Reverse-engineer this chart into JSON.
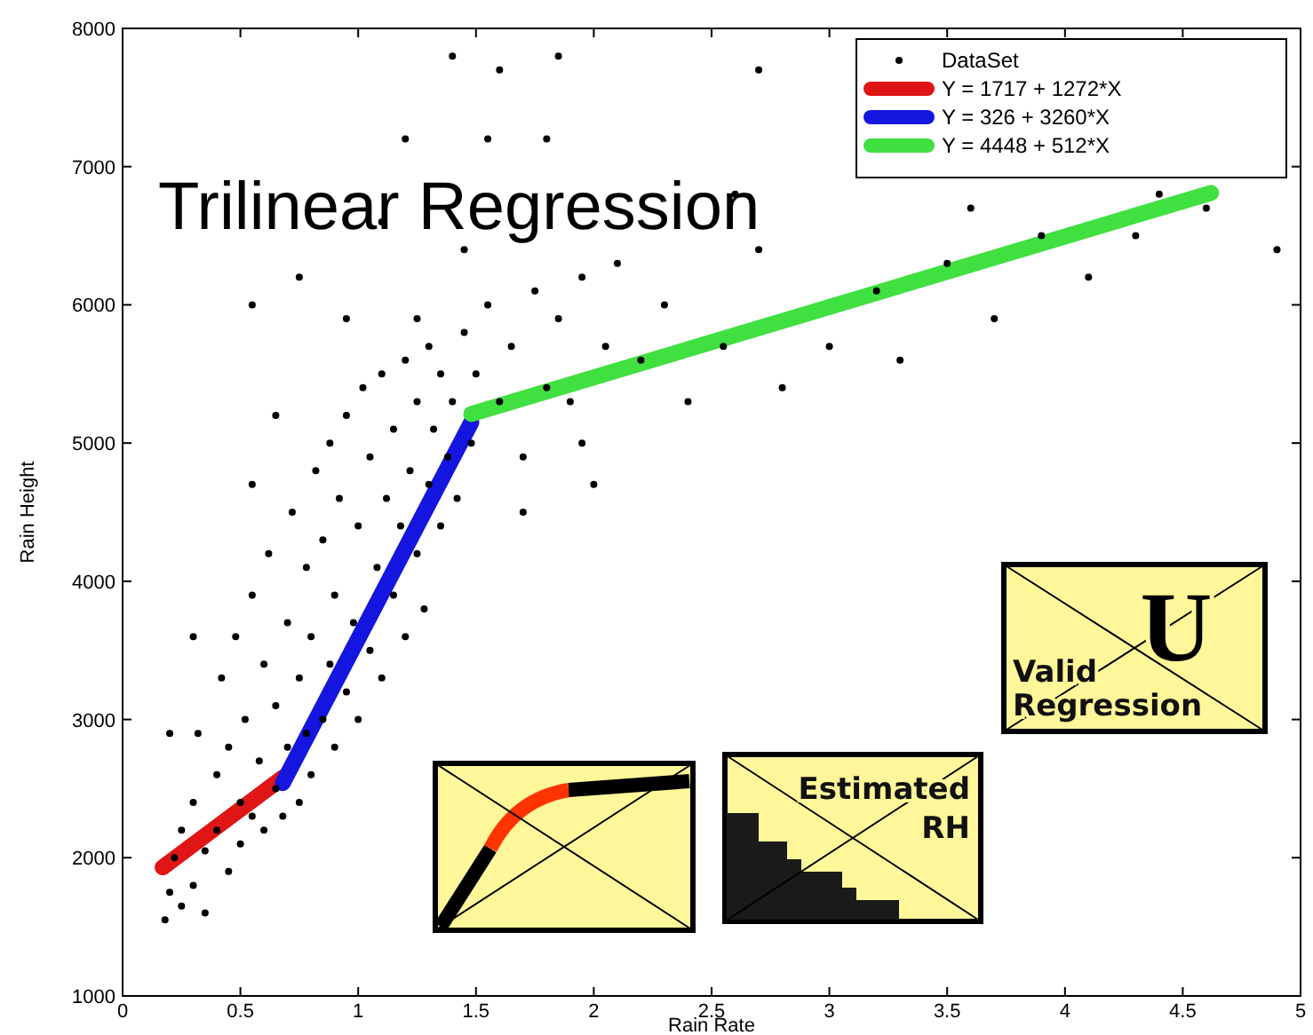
{
  "chart_data": {
    "type": "scatter",
    "title": "Trilinear Regression",
    "xlabel": "Rain Rate",
    "ylabel": "Rain Height",
    "xlim": [
      0,
      5
    ],
    "xticks": [
      0,
      0.5,
      1,
      1.5,
      2,
      2.5,
      3,
      3.5,
      4,
      4.5,
      5
    ],
    "ylim": [
      1000,
      8000
    ],
    "yticks": [
      1000,
      2000,
      3000,
      4000,
      5000,
      6000,
      7000,
      8000
    ],
    "grid": false,
    "legend": "top right",
    "marker": "circle",
    "annotations": [
      "Valid",
      "Regression",
      "U",
      "Estimated",
      "RH"
    ],
    "series": [
      {
        "name": "DataSet",
        "color": "#000000",
        "x": [
          0.18,
          0.2,
          0.22,
          0.25,
          0.25,
          0.3,
          0.3,
          0.32,
          0.35,
          0.35,
          0.4,
          0.4,
          0.42,
          0.45,
          0.45,
          0.48,
          0.5,
          0.5,
          0.52,
          0.55,
          0.55,
          0.58,
          0.6,
          0.6,
          0.62,
          0.65,
          0.65,
          0.68,
          0.7,
          0.7,
          0.72,
          0.75,
          0.75,
          0.78,
          0.78,
          0.8,
          0.8,
          0.82,
          0.85,
          0.85,
          0.88,
          0.88,
          0.9,
          0.9,
          0.92,
          0.95,
          0.95,
          0.98,
          1.0,
          1.0,
          1.02,
          1.05,
          1.05,
          1.08,
          1.1,
          1.1,
          1.12,
          1.15,
          1.15,
          1.18,
          1.2,
          1.2,
          1.22,
          1.25,
          1.25,
          1.28,
          1.3,
          1.3,
          1.32,
          1.35,
          1.35,
          1.38,
          1.4,
          1.42,
          1.45,
          1.48,
          1.5,
          1.55,
          1.6,
          1.65,
          1.7,
          1.75,
          1.8,
          1.85,
          1.9,
          1.95,
          2.0,
          2.05,
          2.1,
          2.2,
          2.3,
          2.4,
          2.55,
          2.7,
          2.8,
          3.0,
          3.2,
          3.3,
          3.5,
          3.7,
          3.9,
          4.1,
          4.3,
          4.6,
          4.9,
          0.55,
          0.75,
          1.1,
          1.2,
          1.4,
          1.55,
          1.6,
          1.85,
          1.8,
          2.7,
          1.25,
          1.45,
          0.3,
          0.2,
          0.65,
          0.55,
          0.95,
          1.7,
          1.95,
          2.6,
          3.6,
          4.4
        ],
        "values": [
          1550,
          1750,
          2000,
          1650,
          2200,
          1800,
          2400,
          2900,
          2050,
          1600,
          2200,
          2600,
          3300,
          1900,
          2800,
          3600,
          2100,
          2400,
          3000,
          2300,
          3900,
          2700,
          2200,
          3400,
          4200,
          2500,
          3100,
          2300,
          2800,
          3700,
          4500,
          2400,
          3300,
          2900,
          4100,
          2600,
          3600,
          4800,
          3000,
          4300,
          3400,
          5000,
          2800,
          3900,
          4600,
          3200,
          5200,
          3700,
          3000,
          4400,
          5400,
          3500,
          4900,
          4100,
          3300,
          5500,
          4600,
          3900,
          5100,
          4400,
          3600,
          5600,
          4800,
          4200,
          5300,
          3800,
          4700,
          5700,
          5100,
          4400,
          5500,
          4900,
          5300,
          4600,
          5800,
          5000,
          5500,
          6000,
          5300,
          5700,
          4900,
          6100,
          5400,
          5900,
          5300,
          6200,
          4700,
          5700,
          6300,
          5600,
          6000,
          5300,
          5700,
          6400,
          5400,
          5700,
          6100,
          5600,
          6300,
          5900,
          6500,
          6200,
          6500,
          6700,
          6400,
          6000,
          6200,
          6600,
          7200,
          7800,
          7200,
          7700,
          7800,
          7200,
          7700,
          5900,
          6400,
          3600,
          2900,
          5200,
          4700,
          5900,
          4500,
          5000,
          6800,
          6700,
          6800
        ]
      },
      {
        "name": "Y = 1717 + 1272*X",
        "type": "line",
        "marker": "none",
        "color": "#e01515",
        "x": [
          0.17,
          0.68
        ],
        "values": [
          1930,
          2580
        ]
      },
      {
        "name": "Y = 326 + 3260*X",
        "type": "line",
        "marker": "none",
        "color": "#1515e0",
        "x": [
          0.68,
          1.48
        ],
        "values": [
          2540,
          5150
        ]
      },
      {
        "name": "Y = 4448 + 512*X",
        "type": "line",
        "marker": "none",
        "color": "#40e040",
        "x": [
          1.48,
          4.62
        ],
        "values": [
          5210,
          6810
        ]
      }
    ]
  }
}
